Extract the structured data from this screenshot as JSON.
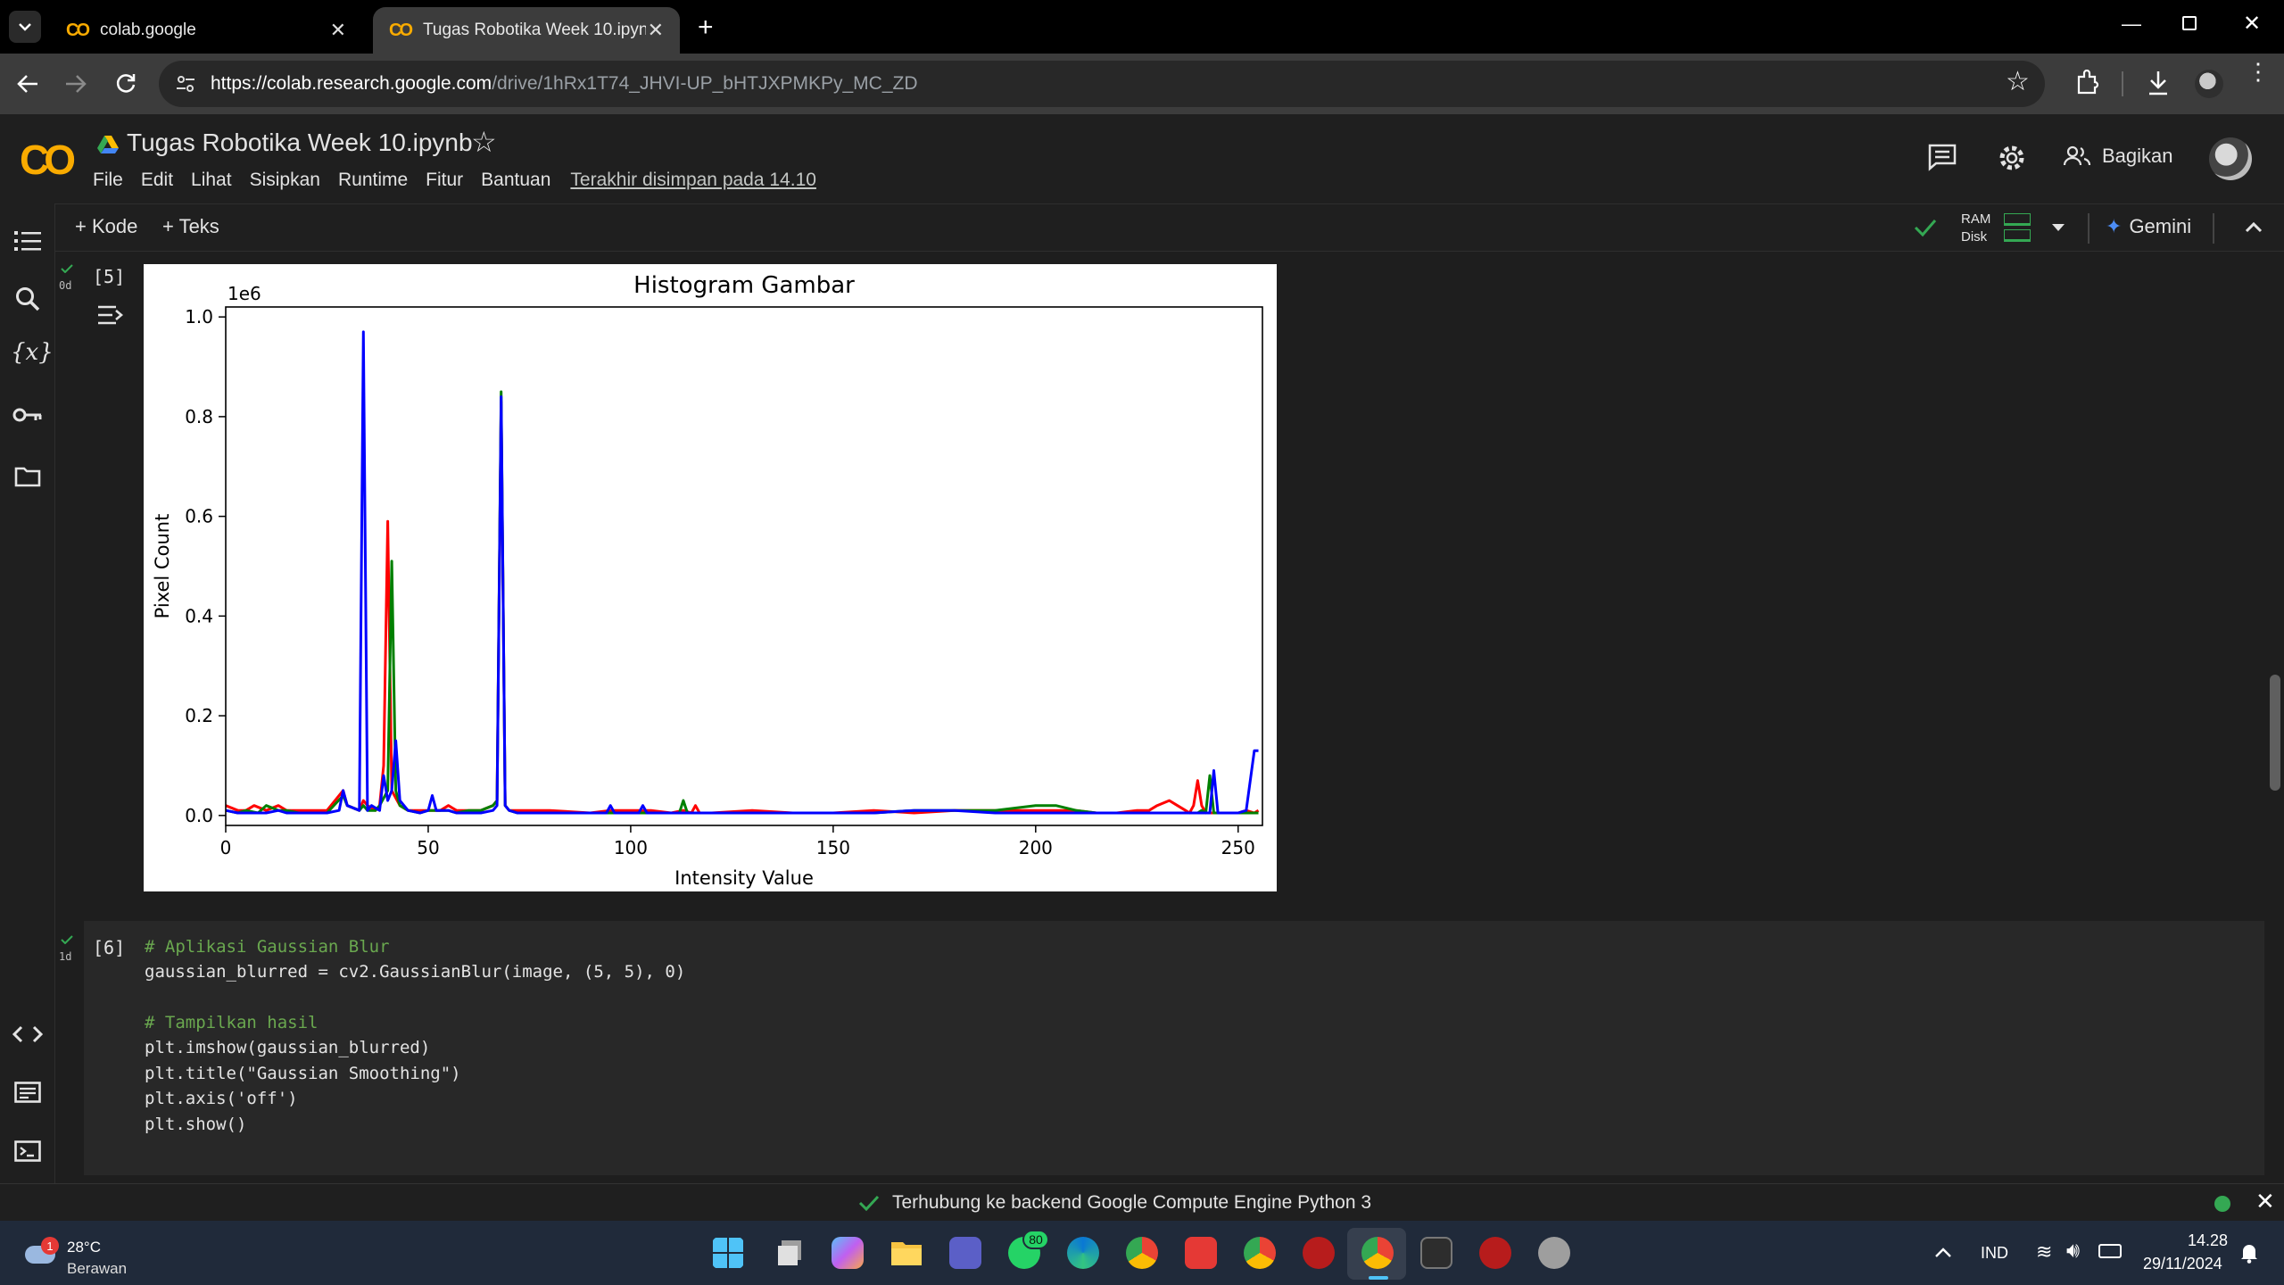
{
  "browser": {
    "tabs": [
      {
        "label": "colab.google",
        "active": false
      },
      {
        "label": "Tugas Robotika Week 10.ipynb",
        "active": true
      }
    ],
    "url_host": "https://colab.research.google.com",
    "url_path": "/drive/1hRx1T74_JHVI-UP_bHTJXPMKPy_MC_ZD"
  },
  "colab": {
    "logo": "CO",
    "title": "Tugas Robotika Week 10.ipynb",
    "menu": [
      "File",
      "Edit",
      "Lihat",
      "Sisipkan",
      "Runtime",
      "Fitur",
      "Bantuan"
    ],
    "saved_status": "Terakhir disimpan pada 14.10",
    "share_label": "Bagikan",
    "toolbar": {
      "add_code": "+ Kode",
      "add_text": "+ Teks",
      "ram": "RAM",
      "disk": "Disk",
      "gemini": "Gemini"
    }
  },
  "cells": [
    {
      "exec_count": "[5]",
      "duration": "0d"
    },
    {
      "exec_count": "[6]",
      "duration": "1d",
      "code": [
        "# Aplikasi Gaussian Blur",
        "gaussian_blurred = cv2.GaussianBlur(image, (5, 5), 0)",
        "",
        "# Tampilkan hasil",
        "plt.imshow(gaussian_blurred)",
        "plt.title(\"Gaussian Smoothing\")",
        "plt.axis('off')",
        "plt.show()"
      ]
    }
  ],
  "chart_data": {
    "type": "line",
    "title": "Histogram Gambar",
    "xlabel": "Intensity Value",
    "ylabel": "Pixel Count",
    "y_offset_label": "1e6",
    "xlim": [
      0,
      256
    ],
    "ylim": [
      -0.02,
      1.02
    ],
    "xticks": [
      0,
      50,
      100,
      150,
      200,
      250
    ],
    "yticks": [
      "0.0",
      "0.2",
      "0.4",
      "0.6",
      "0.8",
      "1.0"
    ],
    "ytick_values": [
      0.0,
      0.2,
      0.4,
      0.6,
      0.8,
      1.0
    ],
    "grid": false,
    "series": [
      {
        "color": "#ff0000",
        "x": [
          0,
          3,
          5,
          7,
          10,
          13,
          15,
          18,
          20,
          25,
          29,
          30,
          33,
          34,
          35,
          37,
          38,
          39,
          40,
          41,
          43,
          45,
          48,
          50,
          53,
          55,
          57,
          60,
          63,
          66,
          67,
          68,
          69,
          70,
          72,
          75,
          80,
          90,
          95,
          100,
          105,
          110,
          113,
          115,
          116,
          117,
          120,
          130,
          140,
          150,
          160,
          170,
          180,
          190,
          200,
          210,
          215,
          220,
          225,
          228,
          230,
          233,
          235,
          237,
          238,
          239,
          240,
          241,
          242,
          244,
          246,
          248,
          250,
          252,
          254,
          255
        ],
        "y": [
          0.02,
          0.01,
          0.01,
          0.02,
          0.01,
          0.02,
          0.01,
          0.01,
          0.01,
          0.01,
          0.05,
          0.02,
          0.01,
          0.03,
          0.02,
          0.01,
          0.02,
          0.1,
          0.59,
          0.05,
          0.02,
          0.01,
          0.01,
          0.01,
          0.01,
          0.02,
          0.01,
          0.01,
          0.01,
          0.02,
          0.03,
          0.83,
          0.02,
          0.01,
          0.01,
          0.01,
          0.01,
          0.005,
          0.01,
          0.01,
          0.01,
          0.005,
          0.01,
          0.005,
          0.02,
          0.005,
          0.005,
          0.01,
          0.005,
          0.005,
          0.01,
          0.005,
          0.01,
          0.01,
          0.01,
          0.01,
          0.005,
          0.005,
          0.01,
          0.01,
          0.02,
          0.03,
          0.02,
          0.01,
          0.005,
          0.02,
          0.07,
          0.02,
          0.005,
          0.005,
          0.005,
          0.005,
          0.005,
          0.01,
          0.005,
          0.01
        ]
      },
      {
        "color": "#008000",
        "x": [
          0,
          3,
          5,
          8,
          10,
          13,
          15,
          18,
          20,
          25,
          29,
          30,
          33,
          34,
          35,
          37,
          38,
          40,
          41,
          42,
          43,
          45,
          48,
          50,
          53,
          55,
          57,
          60,
          63,
          66,
          67,
          68,
          69,
          70,
          72,
          75,
          80,
          90,
          95,
          100,
          105,
          110,
          112,
          113,
          114,
          115,
          120,
          130,
          140,
          150,
          160,
          170,
          180,
          190,
          200,
          205,
          210,
          215,
          220,
          225,
          230,
          235,
          238,
          240,
          241,
          242,
          243,
          244,
          246,
          248,
          250,
          252,
          254,
          255
        ],
        "y": [
          0.01,
          0.005,
          0.01,
          0.005,
          0.02,
          0.01,
          0.01,
          0.005,
          0.005,
          0.005,
          0.04,
          0.02,
          0.01,
          0.02,
          0.01,
          0.01,
          0.02,
          0.05,
          0.51,
          0.05,
          0.02,
          0.01,
          0.005,
          0.01,
          0.01,
          0.01,
          0.005,
          0.01,
          0.01,
          0.02,
          0.03,
          0.85,
          0.02,
          0.01,
          0.005,
          0.005,
          0.005,
          0.005,
          0.005,
          0.005,
          0.005,
          0.005,
          0.005,
          0.03,
          0.005,
          0.005,
          0.005,
          0.005,
          0.005,
          0.005,
          0.005,
          0.01,
          0.01,
          0.01,
          0.02,
          0.02,
          0.01,
          0.005,
          0.005,
          0.005,
          0.005,
          0.005,
          0.005,
          0.005,
          0.01,
          0.005,
          0.08,
          0.005,
          0.005,
          0.005,
          0.005,
          0.005,
          0.005,
          0.005
        ]
      },
      {
        "color": "#0000ff",
        "x": [
          0,
          3,
          5,
          8,
          10,
          13,
          15,
          18,
          20,
          25,
          28,
          29,
          30,
          33,
          34,
          35,
          36,
          38,
          39,
          40,
          41,
          42,
          43,
          45,
          48,
          50,
          51,
          52,
          55,
          57,
          60,
          63,
          66,
          67,
          68,
          69,
          70,
          72,
          75,
          80,
          85,
          90,
          94,
          95,
          96,
          100,
          102,
          103,
          104,
          110,
          120,
          130,
          140,
          150,
          160,
          170,
          180,
          190,
          200,
          210,
          220,
          230,
          235,
          240,
          243,
          244,
          245,
          246,
          248,
          250,
          252,
          254,
          255
        ],
        "y": [
          0.01,
          0.005,
          0.005,
          0.005,
          0.005,
          0.01,
          0.005,
          0.005,
          0.005,
          0.005,
          0.01,
          0.05,
          0.02,
          0.01,
          0.97,
          0.01,
          0.02,
          0.01,
          0.08,
          0.03,
          0.05,
          0.15,
          0.03,
          0.01,
          0.005,
          0.01,
          0.04,
          0.01,
          0.01,
          0.005,
          0.005,
          0.005,
          0.01,
          0.02,
          0.84,
          0.02,
          0.01,
          0.005,
          0.005,
          0.005,
          0.005,
          0.005,
          0.005,
          0.02,
          0.005,
          0.005,
          0.005,
          0.02,
          0.005,
          0.005,
          0.005,
          0.005,
          0.005,
          0.005,
          0.005,
          0.01,
          0.01,
          0.005,
          0.005,
          0.005,
          0.005,
          0.005,
          0.005,
          0.005,
          0.005,
          0.09,
          0.005,
          0.005,
          0.005,
          0.005,
          0.01,
          0.13,
          0.13
        ]
      }
    ]
  },
  "status": {
    "message": "Terhubung ke backend Google Compute Engine Python 3"
  },
  "taskbar": {
    "weather_temp": "28°C",
    "weather_desc": "Berawan",
    "weather_badge": "1",
    "whatsapp_badge": "80",
    "lang": "IND",
    "time": "14.28",
    "date": "29/11/2024"
  }
}
